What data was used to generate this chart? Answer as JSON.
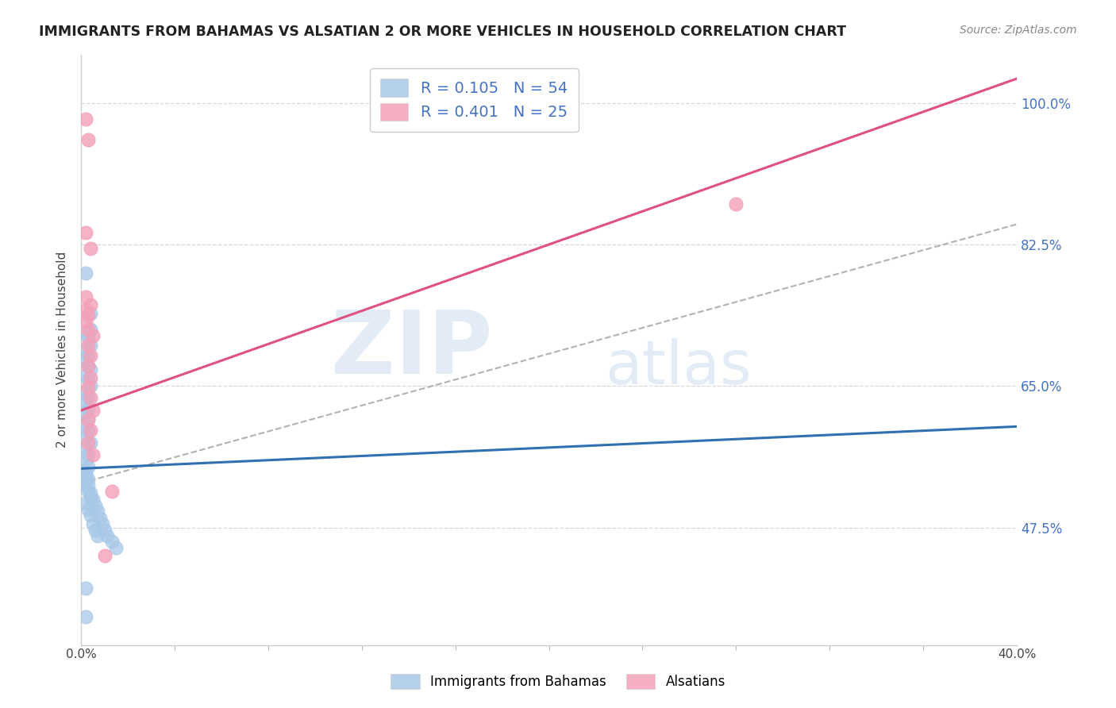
{
  "title": "IMMIGRANTS FROM BAHAMAS VS ALSATIAN 2 OR MORE VEHICLES IN HOUSEHOLD CORRELATION CHART",
  "source": "Source: ZipAtlas.com",
  "ylabel": "2 or more Vehicles in Household",
  "ytick_labels": [
    "100.0%",
    "82.5%",
    "65.0%",
    "47.5%"
  ],
  "ytick_values": [
    1.0,
    0.825,
    0.65,
    0.475
  ],
  "watermark_zip": "ZIP",
  "watermark_atlas": "atlas",
  "legend_blue_label": "R = 0.105   N = 54",
  "legend_pink_label": "R = 0.401   N = 25",
  "blue_color": "#a8c8e8",
  "pink_color": "#f4a0b8",
  "blue_line_color": "#3070b0",
  "pink_line_color": "#e05080",
  "blue_scatter": [
    [
      0.002,
      0.79
    ],
    [
      0.004,
      0.74
    ],
    [
      0.004,
      0.72
    ],
    [
      0.002,
      0.715
    ],
    [
      0.003,
      0.71
    ],
    [
      0.004,
      0.7
    ],
    [
      0.002,
      0.695
    ],
    [
      0.003,
      0.688
    ],
    [
      0.002,
      0.682
    ],
    [
      0.003,
      0.675
    ],
    [
      0.004,
      0.67
    ],
    [
      0.002,
      0.663
    ],
    [
      0.003,
      0.658
    ],
    [
      0.004,
      0.65
    ],
    [
      0.002,
      0.643
    ],
    [
      0.003,
      0.637
    ],
    [
      0.002,
      0.63
    ],
    [
      0.003,
      0.622
    ],
    [
      0.002,
      0.617
    ],
    [
      0.003,
      0.61
    ],
    [
      0.002,
      0.602
    ],
    [
      0.003,
      0.595
    ],
    [
      0.002,
      0.588
    ],
    [
      0.004,
      0.58
    ],
    [
      0.002,
      0.573
    ],
    [
      0.003,
      0.565
    ],
    [
      0.002,
      0.558
    ],
    [
      0.003,
      0.55
    ],
    [
      0.002,
      0.543
    ],
    [
      0.003,
      0.535
    ],
    [
      0.002,
      0.528
    ],
    [
      0.003,
      0.52
    ],
    [
      0.004,
      0.512
    ],
    [
      0.002,
      0.505
    ],
    [
      0.003,
      0.497
    ],
    [
      0.004,
      0.49
    ],
    [
      0.005,
      0.48
    ],
    [
      0.006,
      0.472
    ],
    [
      0.007,
      0.465
    ],
    [
      0.002,
      0.54
    ],
    [
      0.002,
      0.535
    ],
    [
      0.003,
      0.527
    ],
    [
      0.004,
      0.518
    ],
    [
      0.005,
      0.51
    ],
    [
      0.006,
      0.502
    ],
    [
      0.007,
      0.495
    ],
    [
      0.008,
      0.487
    ],
    [
      0.009,
      0.48
    ],
    [
      0.01,
      0.472
    ],
    [
      0.011,
      0.465
    ],
    [
      0.013,
      0.458
    ],
    [
      0.015,
      0.45
    ],
    [
      0.002,
      0.4
    ],
    [
      0.002,
      0.365
    ]
  ],
  "pink_scatter": [
    [
      0.002,
      0.98
    ],
    [
      0.003,
      0.955
    ],
    [
      0.002,
      0.84
    ],
    [
      0.004,
      0.82
    ],
    [
      0.002,
      0.76
    ],
    [
      0.004,
      0.75
    ],
    [
      0.002,
      0.745
    ],
    [
      0.003,
      0.738
    ],
    [
      0.002,
      0.73
    ],
    [
      0.003,
      0.72
    ],
    [
      0.005,
      0.712
    ],
    [
      0.003,
      0.7
    ],
    [
      0.004,
      0.688
    ],
    [
      0.003,
      0.675
    ],
    [
      0.004,
      0.66
    ],
    [
      0.003,
      0.648
    ],
    [
      0.004,
      0.636
    ],
    [
      0.005,
      0.62
    ],
    [
      0.003,
      0.608
    ],
    [
      0.004,
      0.595
    ],
    [
      0.003,
      0.58
    ],
    [
      0.005,
      0.565
    ],
    [
      0.013,
      0.52
    ],
    [
      0.01,
      0.44
    ],
    [
      0.28,
      0.875
    ]
  ],
  "blue_line_x": [
    0.0,
    0.4
  ],
  "blue_line_y": [
    0.548,
    0.6
  ],
  "pink_line_x": [
    0.0,
    0.4
  ],
  "pink_line_y": [
    0.62,
    1.03
  ],
  "gray_line_x": [
    0.0,
    0.4
  ],
  "gray_line_y": [
    0.53,
    0.85
  ],
  "xlim": [
    0.0,
    0.4
  ],
  "ylim": [
    0.33,
    1.06
  ],
  "background_color": "#ffffff",
  "grid_color": "#d8d8d8",
  "blue_label": "Immigrants from Bahamas",
  "pink_label": "Alsatians"
}
